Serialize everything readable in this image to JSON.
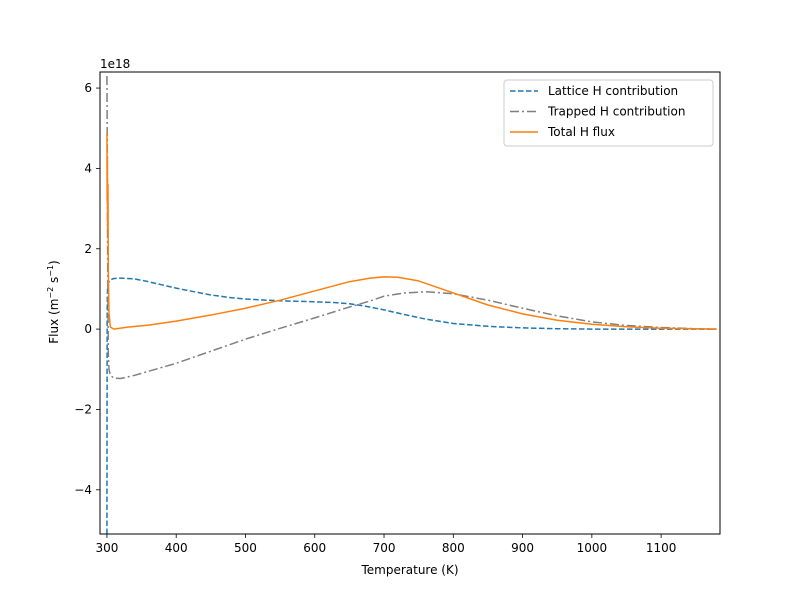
{
  "chart_data": {
    "type": "line",
    "title": "",
    "xlabel": "Temperature (K)",
    "ylabel_main": "Flux (m",
    "ylabel_exp1": "−2",
    "ylabel_mid": " s",
    "ylabel_exp2": "−1",
    "ylabel_end": ")",
    "y_offset_label": "1e18",
    "y_scale_factor": 1e+18,
    "xlim": [
      290,
      1185
    ],
    "ylim": [
      -5.1,
      6.4
    ],
    "xticks": [
      300,
      400,
      500,
      600,
      700,
      800,
      900,
      1000,
      1100
    ],
    "yticks": [
      -4,
      -2,
      0,
      2,
      4,
      6
    ],
    "ytick_labels": [
      "−4",
      "−2",
      "0",
      "2",
      "4",
      "6"
    ],
    "legend_position": "top-right",
    "grid": false,
    "series": [
      {
        "name": "Lattice H contribution",
        "color": "#1f77b4",
        "style": "dashed",
        "x": [
          300,
          300.3,
          300.6,
          301,
          302,
          304,
          310,
          320,
          340,
          360,
          380,
          400,
          420,
          450,
          480,
          500,
          530,
          560,
          600,
          630,
          650,
          670,
          700,
          730,
          760,
          800,
          850,
          900,
          950,
          1000,
          1050,
          1100,
          1150,
          1180
        ],
        "y": [
          -5.1,
          0.2,
          0.8,
          1.05,
          1.15,
          1.22,
          1.26,
          1.27,
          1.25,
          1.18,
          1.1,
          1.02,
          0.95,
          0.85,
          0.78,
          0.75,
          0.72,
          0.7,
          0.68,
          0.66,
          0.63,
          0.58,
          0.48,
          0.36,
          0.25,
          0.14,
          0.07,
          0.03,
          0.01,
          0.0,
          0.0,
          0.0,
          0.0,
          0.0
        ]
      },
      {
        "name": "Trapped H contribution",
        "color": "#7f7f7f",
        "style": "dashdot",
        "x": [
          300,
          300.5,
          301,
          301.5,
          302,
          303,
          305,
          310,
          320,
          340,
          370,
          400,
          450,
          500,
          550,
          600,
          650,
          680,
          700,
          730,
          760,
          800,
          850,
          900,
          950,
          1000,
          1050,
          1100,
          1150,
          1180
        ],
        "y": [
          6.3,
          4.5,
          2.0,
          0.5,
          -0.6,
          -1.0,
          -1.15,
          -1.22,
          -1.23,
          -1.15,
          -1.0,
          -0.85,
          -0.55,
          -0.25,
          0.02,
          0.28,
          0.55,
          0.7,
          0.82,
          0.9,
          0.93,
          0.88,
          0.72,
          0.52,
          0.33,
          0.18,
          0.09,
          0.04,
          0.01,
          0.0
        ]
      },
      {
        "name": "Total H flux",
        "color": "#ff7f0e",
        "style": "solid",
        "x": [
          300,
          300.3,
          300.6,
          301,
          301.5,
          302,
          303,
          305,
          310,
          330,
          360,
          400,
          450,
          500,
          550,
          600,
          650,
          680,
          700,
          720,
          750,
          800,
          850,
          900,
          950,
          1000,
          1050,
          1100,
          1150,
          1180
        ],
        "y": [
          4.9,
          3.2,
          4.3,
          2.5,
          3.6,
          1.4,
          0.4,
          0.05,
          0.0,
          0.05,
          0.1,
          0.2,
          0.35,
          0.52,
          0.72,
          0.95,
          1.18,
          1.27,
          1.3,
          1.29,
          1.2,
          0.9,
          0.6,
          0.38,
          0.22,
          0.12,
          0.06,
          0.02,
          0.01,
          0.0
        ]
      }
    ]
  }
}
